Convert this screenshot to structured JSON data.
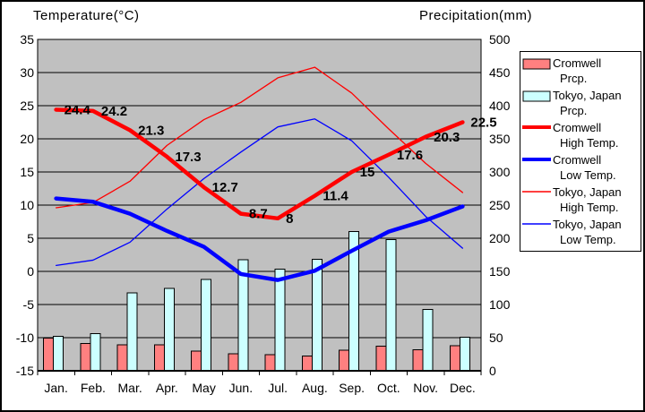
{
  "titles": {
    "left": "Temperature(°C)",
    "right": "Precipitation(mm)"
  },
  "chart_data": {
    "type": "combo-bar-line-climograph",
    "categories": [
      "Jan.",
      "Feb.",
      "Mar.",
      "Apr.",
      "May",
      "Jun.",
      "Jul.",
      "Aug.",
      "Sep.",
      "Oct.",
      "Nov.",
      "Dec."
    ],
    "temperature_axis": {
      "title": "Temperature(°C)",
      "min": -15,
      "max": 35,
      "tick_step": 5,
      "tick_labels": [
        "35",
        "30",
        "25",
        "20",
        "15",
        "10",
        "5",
        "0",
        "-5",
        "-10",
        "-15"
      ]
    },
    "precipitation_axis": {
      "title": "Precipitation(mm)",
      "min": 0,
      "max": 500,
      "tick_step": 50,
      "tick_labels": [
        "500",
        "450",
        "400",
        "350",
        "300",
        "250",
        "200",
        "150",
        "100",
        "50",
        "0"
      ]
    },
    "grid": true,
    "plot_bg_color": "#C0C0C0",
    "grid_color": "#000000",
    "legend_position": "right",
    "series": [
      {
        "name": "Cromwell Prcp.",
        "legend_lines": [
          "Cromwell",
          "Prcp."
        ],
        "type": "bar",
        "axis": "precipitation",
        "color": "#FF8080",
        "values": [
          49,
          41,
          39,
          39,
          30,
          26,
          24,
          22,
          31,
          37,
          32,
          38
        ]
      },
      {
        "name": "Tokyo, Japan Prcp.",
        "legend_lines": [
          "Tokyo, Japan",
          "Prcp."
        ],
        "type": "bar",
        "axis": "precipitation",
        "color": "#CCFFFF",
        "values": [
          52.3,
          56.1,
          117.5,
          124.5,
          137.8,
          167.7,
          153.5,
          168.2,
          209.9,
          197.8,
          92.5,
          51
        ]
      },
      {
        "name": "Cromwell High Temp.",
        "legend_lines": [
          "Cromwell",
          "High Temp."
        ],
        "type": "line",
        "weight": "thick",
        "axis": "temperature",
        "color": "#FF0000",
        "values": [
          24.4,
          24.2,
          21.3,
          17.3,
          12.7,
          8.7,
          8,
          11.4,
          15,
          17.6,
          20.3,
          22.5
        ],
        "point_labels": [
          "24.4",
          "24.2",
          "21.3",
          "17.3",
          "12.7",
          "8.7",
          "8",
          "11.4",
          "15",
          "17.6",
          "20.3",
          "22.5"
        ]
      },
      {
        "name": "Cromwell Low Temp.",
        "legend_lines": [
          "Cromwell",
          "Low Temp."
        ],
        "type": "line",
        "weight": "thick",
        "axis": "temperature",
        "color": "#0000FF",
        "values": [
          11,
          10.5,
          8.7,
          6.1,
          3.7,
          -0.4,
          -1.3,
          0.1,
          3.1,
          6,
          7.7,
          9.8
        ]
      },
      {
        "name": "Tokyo, Japan High Temp.",
        "legend_lines": [
          "Tokyo, Japan",
          "High Temp."
        ],
        "type": "line",
        "weight": "thin",
        "axis": "temperature",
        "color": "#FF0000",
        "values": [
          9.6,
          10.4,
          13.6,
          19,
          22.9,
          25.5,
          29.2,
          30.8,
          26.9,
          21.5,
          16.3,
          11.9
        ]
      },
      {
        "name": "Tokyo, Japan Low Temp.",
        "legend_lines": [
          "Tokyo, Japan",
          "Low Temp."
        ],
        "type": "line",
        "weight": "thin",
        "axis": "temperature",
        "color": "#0000FF",
        "values": [
          0.9,
          1.7,
          4.4,
          9.4,
          14,
          18,
          21.8,
          23,
          19.7,
          14.2,
          8.3,
          3.5
        ]
      }
    ]
  }
}
